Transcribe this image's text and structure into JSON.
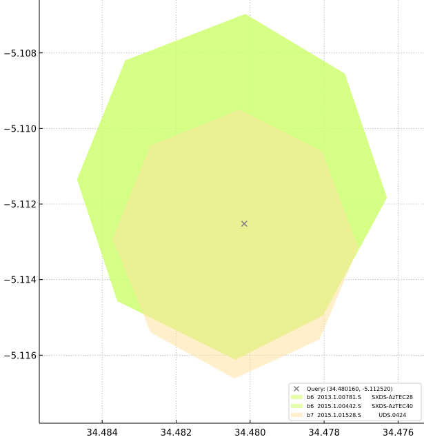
{
  "chart_data": {
    "type": "polygon-footprint",
    "x_axis": {
      "range": [
        34.4857,
        34.4753
      ],
      "inverted": true,
      "ticks": [
        34.484,
        34.482,
        34.48,
        34.478,
        34.476
      ],
      "tick_labels": [
        "34.484",
        "34.482",
        "34.480",
        "34.478",
        "34.476"
      ]
    },
    "y_axis": {
      "range": [
        -5.1178,
        -5.1066
      ],
      "ticks": [
        -5.108,
        -5.11,
        -5.112,
        -5.114,
        -5.116
      ],
      "tick_labels": [
        "−5.108",
        "−5.110",
        "−5.112",
        "−5.114",
        "−5.116"
      ]
    },
    "grid": true,
    "legend_position": "bottom-right",
    "query": {
      "ra": 34.48016,
      "dec": -5.11252,
      "label": "Query: (34.480160, -5.112520)",
      "color": "#808080"
    },
    "footprints": [
      {
        "label": "b6  2013.1.00781.S      SXDS-AzTEC28",
        "color": "#ccff66",
        "opacity": 0.55,
        "vertices": [
          [
            34.48338,
            -5.1082
          ],
          [
            34.48013,
            -5.10697
          ],
          [
            34.47744,
            -5.10855
          ],
          [
            34.4763,
            -5.11183
          ],
          [
            34.47803,
            -5.11495
          ],
          [
            34.4804,
            -5.11612
          ],
          [
            34.48359,
            -5.11457
          ],
          [
            34.48468,
            -5.11135
          ]
        ]
      },
      {
        "label": "b6  2015.1.00442.S      SXDS-AzTEC40",
        "color": "#ccff66",
        "opacity": 0.55,
        "vertices": [
          [
            34.48338,
            -5.1082
          ],
          [
            34.48013,
            -5.10697
          ],
          [
            34.47744,
            -5.10855
          ],
          [
            34.4763,
            -5.11183
          ],
          [
            34.47803,
            -5.11495
          ],
          [
            34.4804,
            -5.11612
          ],
          [
            34.48359,
            -5.11457
          ],
          [
            34.48468,
            -5.11135
          ]
        ]
      },
      {
        "label": "b7  2015.1.01528.S          UDS.0424",
        "color": "#ffe4a0",
        "opacity": 0.55,
        "vertices": [
          [
            34.4827,
            -5.11045
          ],
          [
            34.48029,
            -5.1095
          ],
          [
            34.47806,
            -5.1106
          ],
          [
            34.47708,
            -5.11315
          ],
          [
            34.47812,
            -5.11558
          ],
          [
            34.48042,
            -5.11662
          ],
          [
            34.48269,
            -5.1154
          ],
          [
            34.48372,
            -5.11292
          ]
        ]
      }
    ]
  }
}
